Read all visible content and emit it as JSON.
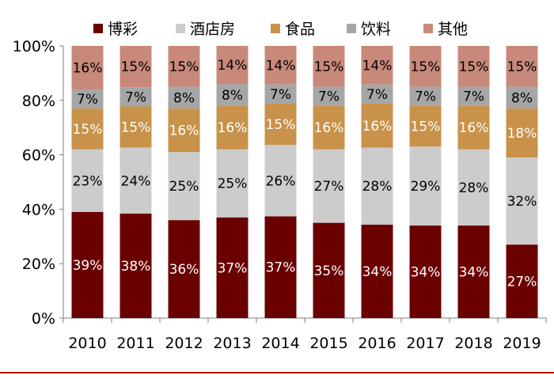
{
  "chart_data": {
    "type": "bar",
    "stacked": true,
    "categories": [
      "2010",
      "2011",
      "2012",
      "2013",
      "2014",
      "2015",
      "2016",
      "2017",
      "2018",
      "2019"
    ],
    "series": [
      {
        "name": "博彩",
        "color": "#6b0000",
        "label_color": "#ffffff",
        "values": [
          39,
          38,
          36,
          37,
          37,
          35,
          34,
          34,
          34,
          27
        ],
        "labels": [
          "39%",
          "38%",
          "36%",
          "37%",
          "37%",
          "35%",
          "34%",
          "34%",
          "34%",
          "27%"
        ]
      },
      {
        "name": "酒店房",
        "color": "#cccccc",
        "label_color": "#000000",
        "values": [
          23,
          24,
          25,
          25,
          26,
          27,
          28,
          29,
          28,
          32
        ],
        "labels": [
          "23%",
          "24%",
          "25%",
          "25%",
          "26%",
          "27%",
          "28%",
          "29%",
          "28%",
          "32%"
        ]
      },
      {
        "name": "食品",
        "color": "#c8924a",
        "label_color": "#ffffff",
        "values": [
          15,
          15,
          16,
          16,
          15,
          16,
          16,
          15,
          16,
          18
        ],
        "labels": [
          "15%",
          "15%",
          "16%",
          "16%",
          "15%",
          "16%",
          "16%",
          "15%",
          "16%",
          "18%"
        ]
      },
      {
        "name": "饮料",
        "color": "#a6a6a6",
        "label_color": "#000000",
        "values": [
          7,
          7,
          8,
          8,
          7,
          7,
          7,
          7,
          7,
          8
        ],
        "labels": [
          "7%",
          "7%",
          "8%",
          "8%",
          "7%",
          "7%",
          "7%",
          "7%",
          "7%",
          "8%"
        ]
      },
      {
        "name": "其他",
        "color": "#c8897a",
        "label_color": "#000000",
        "values": [
          16,
          15,
          15,
          14,
          14,
          15,
          14,
          15,
          15,
          15
        ],
        "labels": [
          "16%",
          "15%",
          "15%",
          "14%",
          "14%",
          "15%",
          "14%",
          "15%",
          "15%",
          "15%"
        ]
      }
    ],
    "y_ticks": [
      "0%",
      "20%",
      "40%",
      "60%",
      "80%",
      "100%"
    ],
    "ylim": [
      0,
      100
    ],
    "legend_position": "top",
    "grid": false,
    "frame_color": "#b00000"
  }
}
